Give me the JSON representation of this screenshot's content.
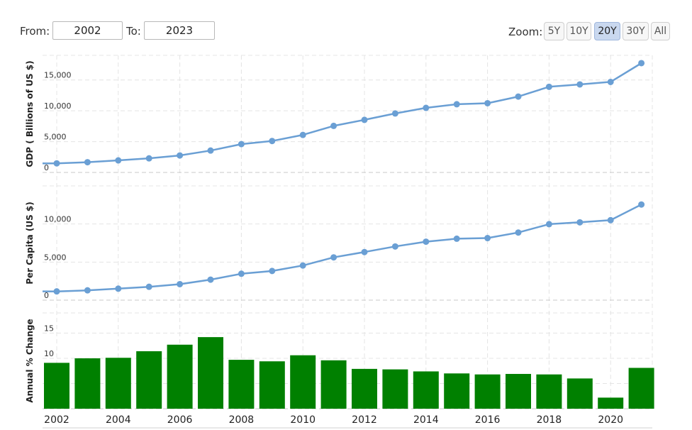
{
  "controls": {
    "from_label": "From:",
    "from_value": "2002",
    "to_label": "To:",
    "to_value": "2023",
    "zoom_label": "Zoom:",
    "zoom_options": [
      "5Y",
      "10Y",
      "20Y",
      "30Y",
      "All"
    ],
    "zoom_selected": "20Y"
  },
  "colors": {
    "line": "#6a9fd4",
    "bar": "#008000"
  },
  "chart_data": [
    {
      "type": "line",
      "ylabel": "GDP ( Billions of US $)",
      "x": [
        2002,
        2003,
        2004,
        2005,
        2006,
        2007,
        2008,
        2009,
        2010,
        2011,
        2012,
        2013,
        2014,
        2015,
        2016,
        2017,
        2018,
        2019,
        2020,
        2021
      ],
      "values": [
        1471,
        1660,
        1955,
        2286,
        2752,
        3550,
        4594,
        5102,
        6087,
        7552,
        8532,
        9570,
        10476,
        11062,
        11233,
        12310,
        13895,
        14280,
        14688,
        17734
      ],
      "yticks": [
        0,
        5000,
        10000,
        15000
      ],
      "ytick_labels": [
        "0",
        "5,000",
        "10,000",
        "15,000"
      ],
      "ylim": [
        0,
        19000
      ],
      "grid": true
    },
    {
      "type": "line",
      "ylabel": "Per Capita (US $)",
      "x": [
        2002,
        2003,
        2004,
        2005,
        2006,
        2007,
        2008,
        2009,
        2010,
        2011,
        2012,
        2013,
        2014,
        2015,
        2016,
        2017,
        2018,
        2019,
        2020,
        2021
      ],
      "values": [
        1149,
        1289,
        1509,
        1753,
        2099,
        2694,
        3468,
        3832,
        4550,
        5618,
        6317,
        7051,
        7679,
        8067,
        8148,
        8879,
        9977,
        10217,
        10500,
        12556
      ],
      "yticks": [
        0,
        5000,
        10000
      ],
      "ytick_labels": [
        "0",
        "5,000",
        "10,000"
      ],
      "ylim": [
        0,
        15000
      ],
      "grid": true
    },
    {
      "type": "bar",
      "ylabel": "Annual % Change",
      "x": [
        2002,
        2003,
        2004,
        2005,
        2006,
        2007,
        2008,
        2009,
        2010,
        2011,
        2012,
        2013,
        2014,
        2015,
        2016,
        2017,
        2018,
        2019,
        2020,
        2021
      ],
      "values": [
        9.1,
        10.0,
        10.1,
        11.4,
        12.7,
        14.2,
        9.7,
        9.4,
        10.6,
        9.6,
        7.9,
        7.8,
        7.4,
        7.0,
        6.8,
        6.9,
        6.8,
        6.0,
        2.2,
        8.1
      ],
      "yticks": [
        0,
        5,
        10,
        15
      ],
      "ytick_labels": [
        "0",
        "5",
        "10",
        "15"
      ],
      "ylim": [
        0,
        19
      ],
      "grid": true
    }
  ],
  "x_axis": {
    "ticks": [
      2002,
      2004,
      2006,
      2008,
      2010,
      2012,
      2014,
      2016,
      2018,
      2020
    ],
    "tick_labels": [
      "2002",
      "2004",
      "2006",
      "2008",
      "2010",
      "2012",
      "2014",
      "2016",
      "2018",
      "2020"
    ]
  }
}
